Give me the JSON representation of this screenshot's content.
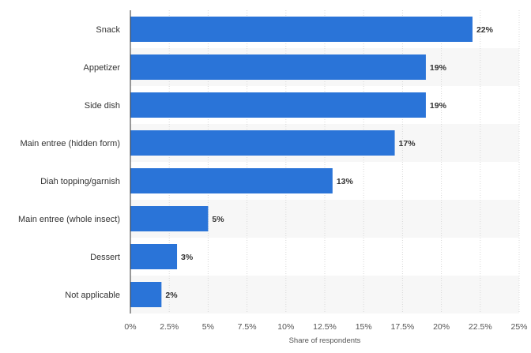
{
  "chart_data": {
    "type": "bar",
    "orientation": "horizontal",
    "categories": [
      "Snack",
      "Appetizer",
      "Side dish",
      "Main entree (hidden form)",
      "Diah topping/garnish",
      "Main entree (whole insect)",
      "Dessert",
      "Not applicable"
    ],
    "values": [
      22,
      19,
      19,
      17,
      13,
      5,
      3,
      2
    ],
    "value_labels": [
      "22%",
      "19%",
      "19%",
      "17%",
      "13%",
      "5%",
      "3%",
      "2%"
    ],
    "xticks": [
      0,
      2.5,
      5,
      7.5,
      10,
      12.5,
      15,
      17.5,
      20,
      22.5,
      25
    ],
    "xtick_labels": [
      "0%",
      "2.5%",
      "5%",
      "7.5%",
      "10%",
      "12.5%",
      "15%",
      "17.5%",
      "20%",
      "22.5%",
      "25%"
    ],
    "xlim": [
      0,
      25
    ],
    "xlabel": "Share of respondents",
    "ylabel": "",
    "title": "",
    "grid": true,
    "colors": {
      "bar": "#2a74d8",
      "band": "#f7f7f7",
      "grid": "#d8d8d8",
      "axis": "#333333"
    }
  }
}
